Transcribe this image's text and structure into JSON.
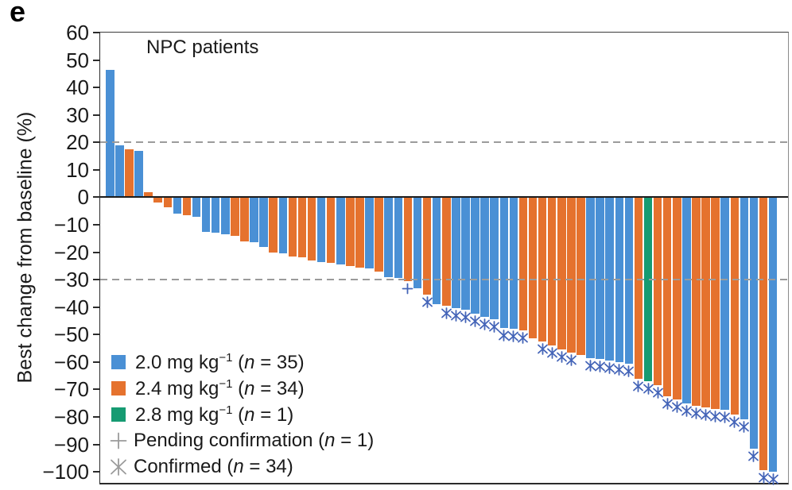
{
  "figure": {
    "panel_label": "e",
    "title": "NPC patients",
    "ylabel": "Best change from baseline (%)"
  },
  "colors": {
    "dose_2_0": "#4a90d5",
    "dose_2_4": "#e5722e",
    "dose_2_8": "#169b72",
    "chart_marker": "#4565b8",
    "legend_marker": "#9b9b9b",
    "reference_line": "#9b9b9b",
    "zero_line": "#1c1c1c",
    "axis": "#2b2b2b",
    "text": "#1a1a1a"
  },
  "legend": {
    "items": [
      {
        "glyph": "swatch",
        "color_key": "dose_2_0",
        "pre": "2.0 mg kg",
        "sup": "−1",
        "mid": " (",
        "italic": "n",
        "post": " = 35)"
      },
      {
        "glyph": "swatch",
        "color_key": "dose_2_4",
        "pre": "2.4 mg kg",
        "sup": "−1",
        "mid": " (",
        "italic": "n",
        "post": " = 34)"
      },
      {
        "glyph": "swatch",
        "color_key": "dose_2_8",
        "pre": "2.8 mg kg",
        "sup": "−1",
        "mid": " (",
        "italic": "n",
        "post": " = 1)"
      },
      {
        "glyph": "plus",
        "color_key": "legend_marker",
        "pre": "Pending confirmation",
        "sup": "",
        "mid": " (",
        "italic": "n",
        "post": " = 1)"
      },
      {
        "glyph": "asterisk",
        "color_key": "legend_marker",
        "pre": "Confirmed",
        "sup": "",
        "mid": " (",
        "italic": "n",
        "post": " = 34)"
      }
    ]
  },
  "chart_data": {
    "type": "bar",
    "title": "NPC patients",
    "xlabel": "",
    "ylabel": "Best change from baseline (%)",
    "ylim": [
      -104,
      60
    ],
    "yticks": [
      60,
      50,
      40,
      30,
      20,
      10,
      0,
      -10,
      -20,
      -30,
      -40,
      -50,
      -60,
      -70,
      -80,
      -90,
      -100
    ],
    "yticklabels": [
      "60",
      "50",
      "40",
      "30",
      "20",
      "10",
      "0",
      "−10",
      "−20",
      "−30",
      "−40",
      "−50",
      "−60",
      "−70",
      "−80",
      "−90",
      "−100"
    ],
    "reference_lines": [
      20,
      -30
    ],
    "grid": false,
    "legend_position": "lower-left",
    "marker_legend": {
      "plus": "Pending confirmation (n = 1)",
      "asterisk": "Confirmed (n = 34)"
    },
    "dose_color_keys": {
      "2.0": "dose_2_0",
      "2.4": "dose_2_4",
      "2.8": "dose_2_8"
    },
    "bars": [
      {
        "dose": "2.0",
        "value": 46.5,
        "marker": ""
      },
      {
        "dose": "2.0",
        "value": 19,
        "marker": ""
      },
      {
        "dose": "2.4",
        "value": 17.5,
        "marker": ""
      },
      {
        "dose": "2.0",
        "value": 17,
        "marker": ""
      },
      {
        "dose": "2.4",
        "value": 2,
        "marker": ""
      },
      {
        "dose": "2.4",
        "value": -2,
        "marker": ""
      },
      {
        "dose": "2.4",
        "value": -3.5,
        "marker": ""
      },
      {
        "dose": "2.0",
        "value": -6,
        "marker": ""
      },
      {
        "dose": "2.4",
        "value": -6.5,
        "marker": ""
      },
      {
        "dose": "2.0",
        "value": -7,
        "marker": ""
      },
      {
        "dose": "2.0",
        "value": -12.5,
        "marker": ""
      },
      {
        "dose": "2.0",
        "value": -13,
        "marker": ""
      },
      {
        "dose": "2.0",
        "value": -13.5,
        "marker": ""
      },
      {
        "dose": "2.4",
        "value": -14,
        "marker": ""
      },
      {
        "dose": "2.4",
        "value": -16,
        "marker": ""
      },
      {
        "dose": "2.0",
        "value": -16.5,
        "marker": ""
      },
      {
        "dose": "2.0",
        "value": -18,
        "marker": ""
      },
      {
        "dose": "2.4",
        "value": -20,
        "marker": ""
      },
      {
        "dose": "2.0",
        "value": -20.5,
        "marker": ""
      },
      {
        "dose": "2.4",
        "value": -21.5,
        "marker": ""
      },
      {
        "dose": "2.4",
        "value": -22,
        "marker": ""
      },
      {
        "dose": "2.4",
        "value": -23,
        "marker": ""
      },
      {
        "dose": "2.0",
        "value": -23.5,
        "marker": ""
      },
      {
        "dose": "2.4",
        "value": -24,
        "marker": ""
      },
      {
        "dose": "2.0",
        "value": -24.5,
        "marker": ""
      },
      {
        "dose": "2.4",
        "value": -25,
        "marker": ""
      },
      {
        "dose": "2.4",
        "value": -25.5,
        "marker": ""
      },
      {
        "dose": "2.0",
        "value": -26,
        "marker": ""
      },
      {
        "dose": "2.4",
        "value": -27,
        "marker": ""
      },
      {
        "dose": "2.0",
        "value": -29,
        "marker": ""
      },
      {
        "dose": "2.0",
        "value": -29.5,
        "marker": ""
      },
      {
        "dose": "2.4",
        "value": -30.5,
        "marker": "+"
      },
      {
        "dose": "2.0",
        "value": -33,
        "marker": ""
      },
      {
        "dose": "2.4",
        "value": -35.5,
        "marker": "*"
      },
      {
        "dose": "2.0",
        "value": -39,
        "marker": ""
      },
      {
        "dose": "2.4",
        "value": -39.5,
        "marker": "*"
      },
      {
        "dose": "2.0",
        "value": -40.5,
        "marker": "*"
      },
      {
        "dose": "2.0",
        "value": -41,
        "marker": "*"
      },
      {
        "dose": "2.0",
        "value": -42.5,
        "marker": "*"
      },
      {
        "dose": "2.0",
        "value": -43.5,
        "marker": "*"
      },
      {
        "dose": "2.0",
        "value": -44.5,
        "marker": "*"
      },
      {
        "dose": "2.0",
        "value": -47.5,
        "marker": "*"
      },
      {
        "dose": "2.0",
        "value": -48,
        "marker": "*"
      },
      {
        "dose": "2.4",
        "value": -48.5,
        "marker": "*"
      },
      {
        "dose": "2.4",
        "value": -51.5,
        "marker": ""
      },
      {
        "dose": "2.4",
        "value": -52.5,
        "marker": "*"
      },
      {
        "dose": "2.4",
        "value": -54,
        "marker": "*"
      },
      {
        "dose": "2.4",
        "value": -55.5,
        "marker": "*"
      },
      {
        "dose": "2.4",
        "value": -56.5,
        "marker": "*"
      },
      {
        "dose": "2.4",
        "value": -57.5,
        "marker": ""
      },
      {
        "dose": "2.0",
        "value": -58.5,
        "marker": "*"
      },
      {
        "dose": "2.0",
        "value": -59,
        "marker": "*"
      },
      {
        "dose": "2.0",
        "value": -59.5,
        "marker": "*"
      },
      {
        "dose": "2.0",
        "value": -60,
        "marker": "*"
      },
      {
        "dose": "2.0",
        "value": -60.5,
        "marker": "*"
      },
      {
        "dose": "2.4",
        "value": -66,
        "marker": "*"
      },
      {
        "dose": "2.8",
        "value": -67,
        "marker": "*"
      },
      {
        "dose": "2.4",
        "value": -68.5,
        "marker": "*"
      },
      {
        "dose": "2.4",
        "value": -72.5,
        "marker": "*"
      },
      {
        "dose": "2.4",
        "value": -73.5,
        "marker": "*"
      },
      {
        "dose": "2.0",
        "value": -75,
        "marker": "*"
      },
      {
        "dose": "2.4",
        "value": -76,
        "marker": "*"
      },
      {
        "dose": "2.4",
        "value": -76.5,
        "marker": "*"
      },
      {
        "dose": "2.4",
        "value": -77,
        "marker": "*"
      },
      {
        "dose": "2.0",
        "value": -77.5,
        "marker": "*"
      },
      {
        "dose": "2.4",
        "value": -79,
        "marker": "*"
      },
      {
        "dose": "2.0",
        "value": -81,
        "marker": "*"
      },
      {
        "dose": "2.0",
        "value": -91.5,
        "marker": "*"
      },
      {
        "dose": "2.4",
        "value": -99.5,
        "marker": "*"
      },
      {
        "dose": "2.0",
        "value": -100,
        "marker": "*"
      }
    ]
  }
}
